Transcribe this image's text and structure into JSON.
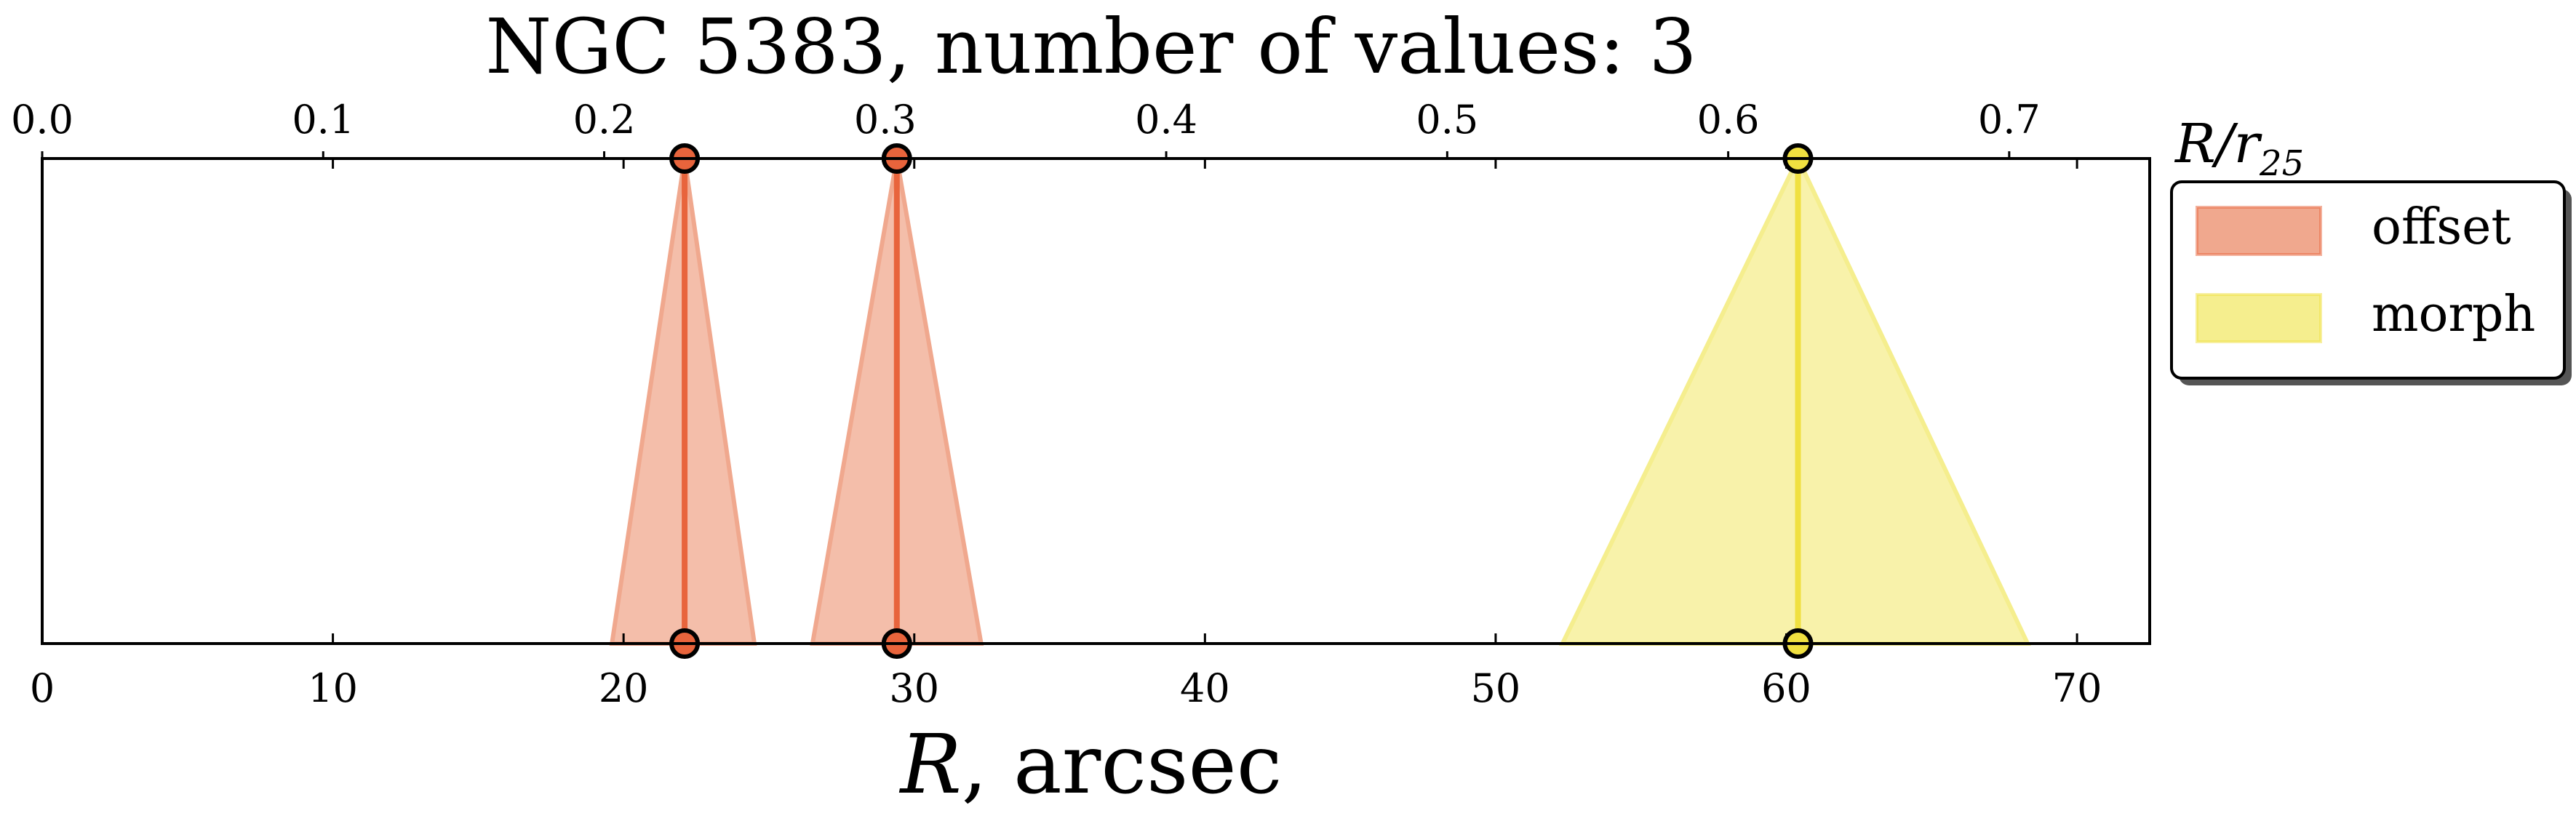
{
  "chart_data": {
    "type": "area",
    "title": "NGC 5383, number of values: 3",
    "xlabel": "R, arcsec",
    "x2label": "R/r25",
    "xlim": [
      0,
      72.5
    ],
    "xticks": [
      0,
      10,
      20,
      30,
      40,
      50,
      60,
      70
    ],
    "x2lim": [
      0,
      0.75
    ],
    "x2ticks": [
      "0.0",
      "0.1",
      "0.2",
      "0.3",
      "0.4",
      "0.5",
      "0.6",
      "0.7"
    ],
    "legend_position": "outside-right-top",
    "series": [
      {
        "name": "offset",
        "color": "#e8643c",
        "fill": "#f0a88e",
        "markers": [
          {
            "value": 22.1,
            "low": 19.6,
            "high": 24.5
          },
          {
            "value": 29.4,
            "low": 26.5,
            "high": 32.3
          }
        ]
      },
      {
        "name": "morph",
        "color": "#f0e040",
        "fill": "#f5ee8e",
        "markers": [
          {
            "value": 60.4,
            "low": 52.3,
            "high": 68.3
          }
        ]
      }
    ]
  }
}
